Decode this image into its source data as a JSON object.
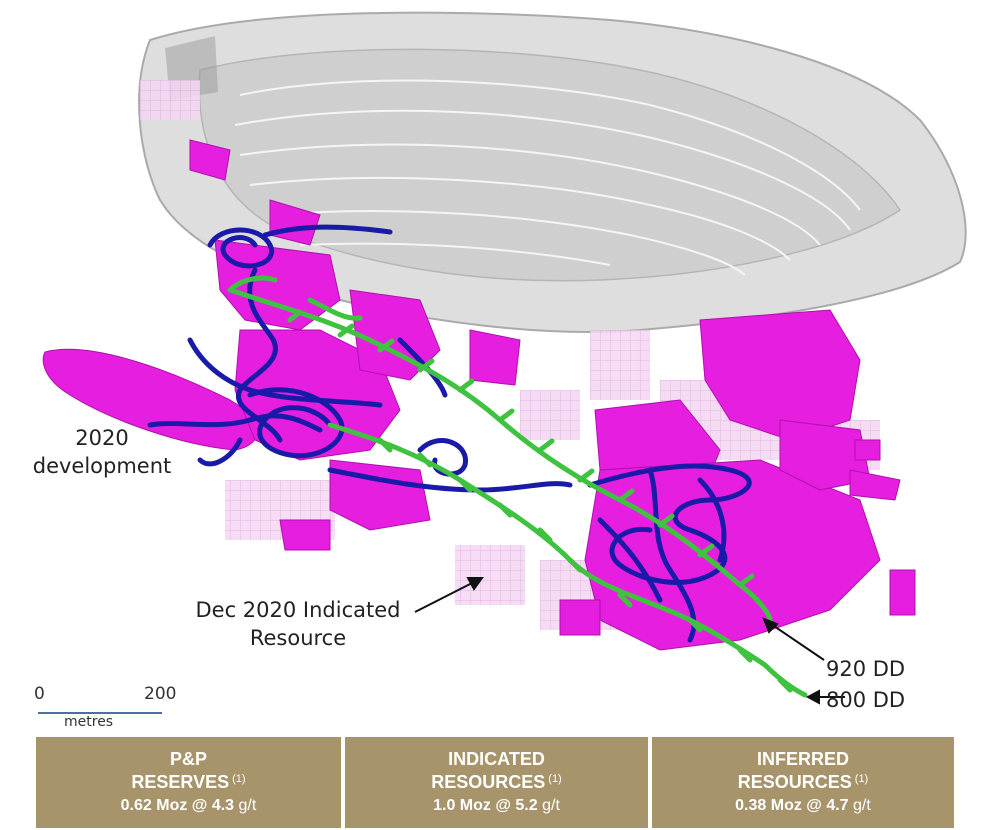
{
  "labels": {
    "development": [
      "2020",
      "development"
    ],
    "indicated": [
      "Dec 2020 Indicated",
      "Resource"
    ],
    "dd920": "920 DD",
    "dd800": "800 DD"
  },
  "scale": {
    "start": "0",
    "end": "200",
    "unit": "metres"
  },
  "boxes": [
    {
      "line1": "P&P",
      "line2": "RESERVES",
      "note": "(1)",
      "value": "0.62 Moz @ 4.3",
      "unit": "g/t"
    },
    {
      "line1": "INDICATED",
      "line2": "RESOURCES",
      "note": "(1)",
      "value": "1.0 Moz @ 5.2",
      "unit": "g/t"
    },
    {
      "line1": "INFERRED",
      "line2": "RESOURCES",
      "note": "(1)",
      "value": "0.38 Moz @ 4.7",
      "unit": "g/t"
    }
  ],
  "colors": {
    "pit": "#d9d9d9",
    "resource": "#e51ee0",
    "resource_light": "#efc2ee",
    "development": "#1a1aa8",
    "drives": "#3fc23f",
    "box": "#a8946a"
  }
}
